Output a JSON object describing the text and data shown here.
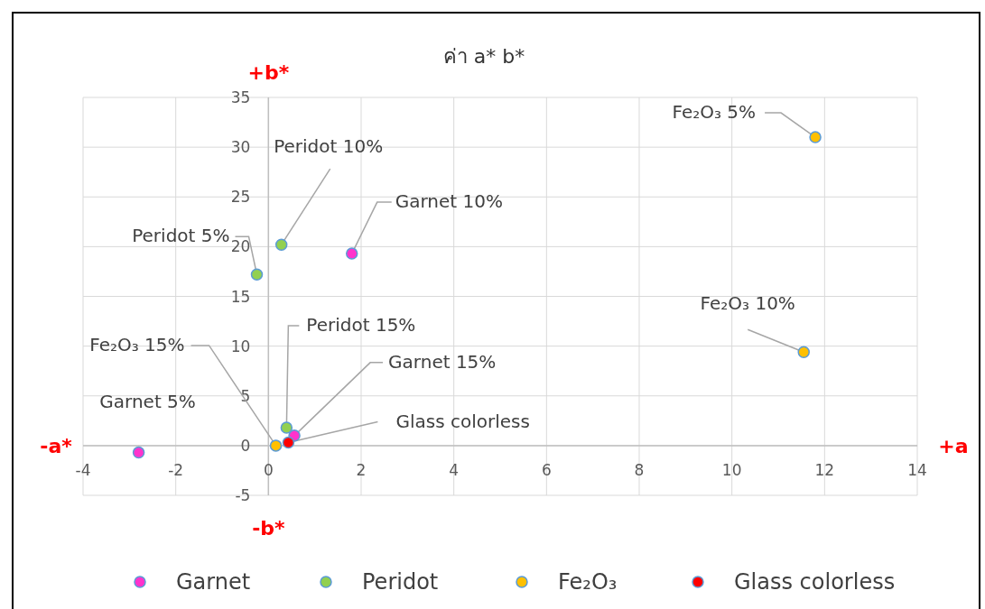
{
  "chart_data": {
    "type": "scatter",
    "title": "ค่า a* b*",
    "series": [
      {
        "name": "Garnet",
        "color": "#ff33cc",
        "x": [
          -2.8,
          1.8,
          0.56
        ],
        "values": [
          -0.7,
          19.3,
          1.0
        ]
      },
      {
        "name": "Peridot",
        "color": "#92d050",
        "x": [
          -0.25,
          0.28,
          0.39
        ],
        "values": [
          17.2,
          20.2,
          1.8
        ]
      },
      {
        "name": "Fe₂O₃",
        "color": "#ffc000",
        "x": [
          11.8,
          11.55,
          0.16
        ],
        "values": [
          31.0,
          9.4,
          0.0
        ]
      },
      {
        "name": "Glass colorless",
        "color": "#ff0000",
        "x": [
          0.43
        ],
        "values": [
          0.3
        ]
      }
    ],
    "xlim": [
      -4,
      14
    ],
    "xticks": [
      -4,
      -2,
      0,
      2,
      4,
      6,
      8,
      10,
      12,
      14
    ],
    "ylim": [
      -5,
      35
    ],
    "yticks": [
      -5,
      0,
      5,
      10,
      15,
      20,
      25,
      30,
      35
    ],
    "grid": true,
    "legend": "bottom",
    "marker": "circle",
    "annotations": [
      {
        "text": "Garnet 5%",
        "x": -2.8,
        "y": -0.7
      },
      {
        "text": "Garnet 10%",
        "x": 1.8,
        "y": 19.3
      },
      {
        "text": "Garnet 15%",
        "x": 0.56,
        "y": 1.0
      },
      {
        "text": "Peridot 5%",
        "x": -0.25,
        "y": 17.2
      },
      {
        "text": "Peridot 10%",
        "x": 0.28,
        "y": 20.2
      },
      {
        "text": "Peridot 15%",
        "x": 0.39,
        "y": 1.8
      },
      {
        "text": "Fe₂O₃ 5%",
        "x": 11.8,
        "y": 31.0
      },
      {
        "text": "Fe₂O₃ 10%",
        "x": 11.55,
        "y": 9.4
      },
      {
        "text": "Fe₂O₃ 15%",
        "x": 0.16,
        "y": 0.0
      },
      {
        "text": "Glass colorless",
        "x": 0.43,
        "y": 0.3
      },
      "+b*",
      "-b*",
      "-a*",
      "+a"
    ]
  }
}
